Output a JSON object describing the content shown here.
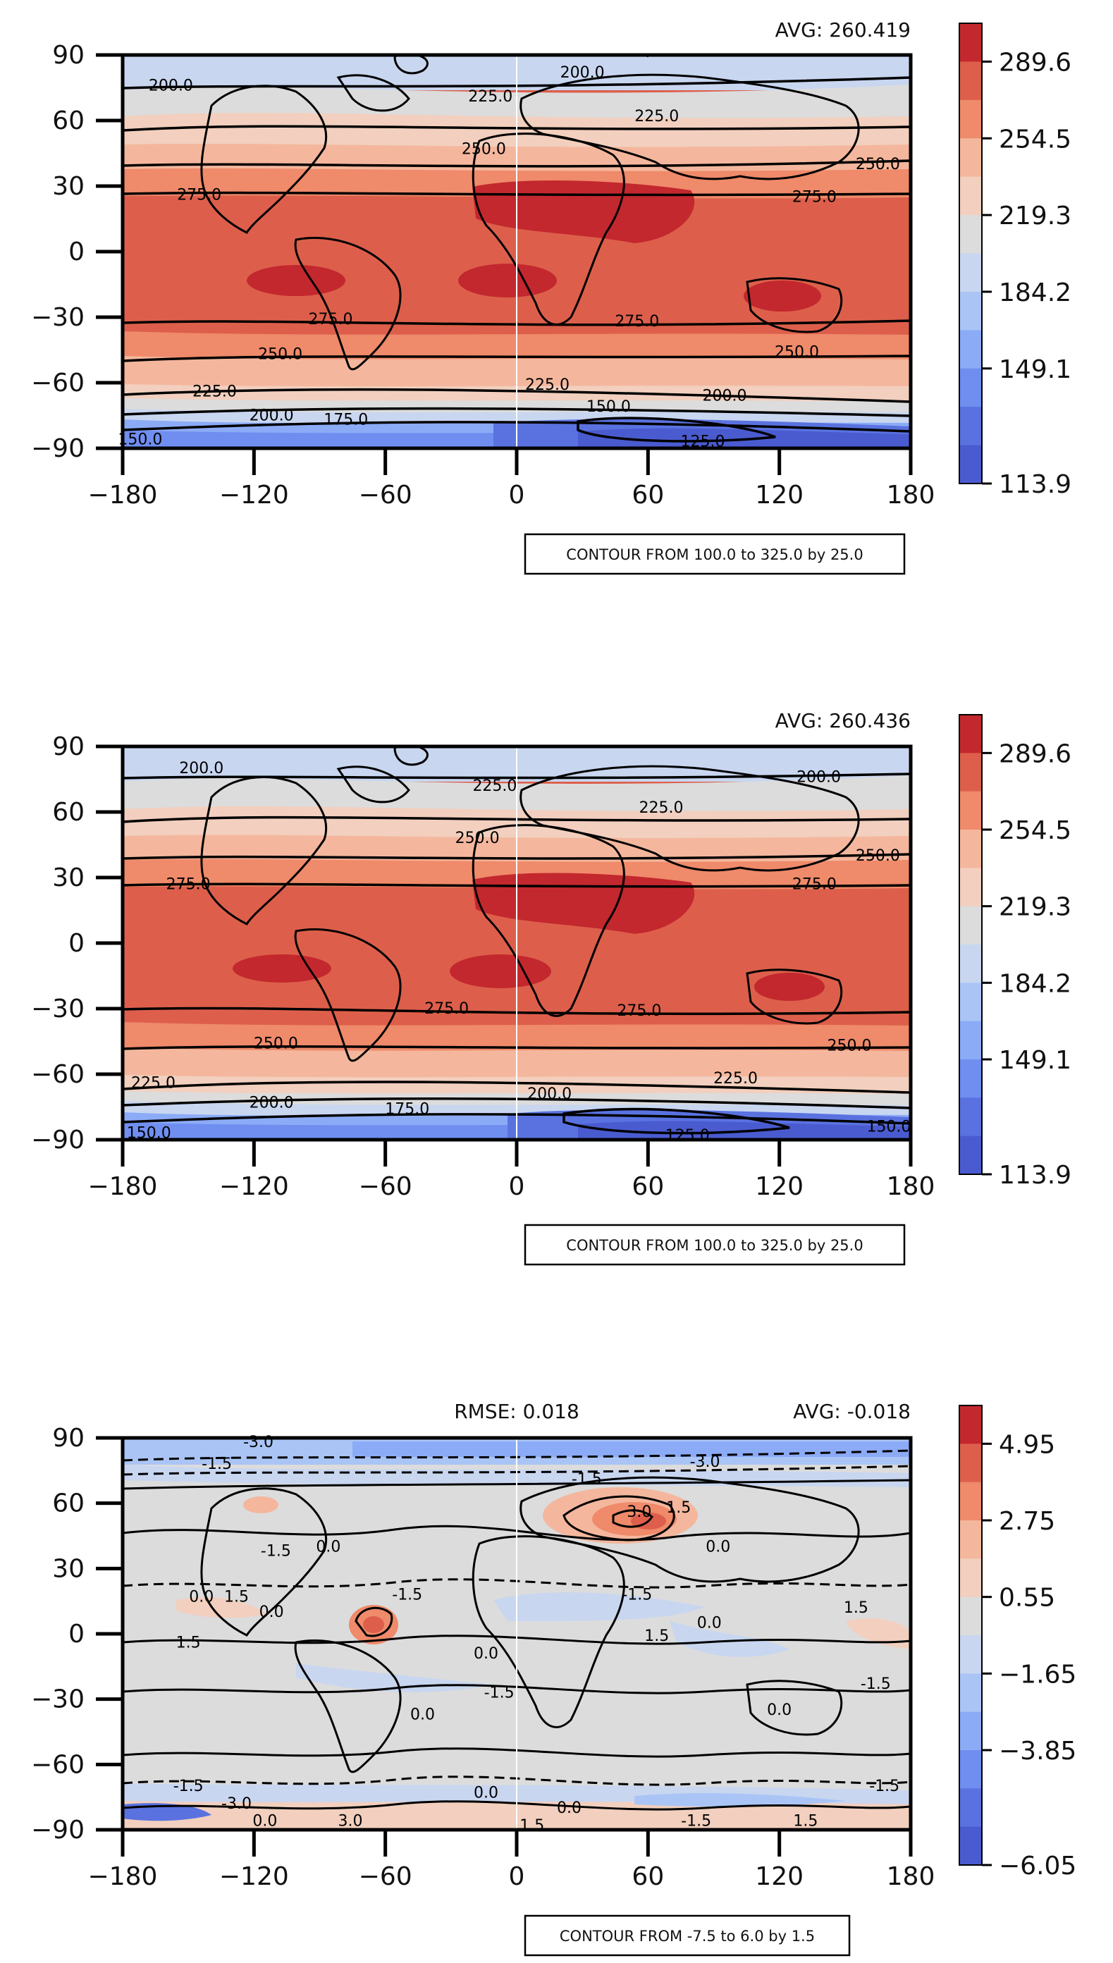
{
  "chart_data": [
    {
      "type": "contour-map",
      "avg_label": "AVG: 260.419",
      "rmse_label": "",
      "contour_note": "CONTOUR FROM 100.0 to 325.0 by 25.0",
      "xlim": [
        -180,
        180
      ],
      "ylim": [
        -90,
        90
      ],
      "xticks": [
        "−180",
        "−120",
        "−60",
        "0",
        "60",
        "120",
        "180"
      ],
      "yticks": [
        "90",
        "60",
        "30",
        "0",
        "−30",
        "−60",
        "−90"
      ],
      "colorbar": {
        "ticks": [
          "289.6",
          "254.5",
          "219.3",
          "184.2",
          "149.1",
          "113.9"
        ],
        "colors": [
          "#c3282e",
          "#dd5f4b",
          "#ef8a6a",
          "#f4b79d",
          "#f2cfbe",
          "#dcdcdc",
          "#c8d6f0",
          "#aac5f5",
          "#8cabf7",
          "#6f8ef0",
          "#5a72e0",
          "#4a5bd0"
        ]
      },
      "contour_labels": [
        {
          "text": "200.0",
          "x": -158,
          "y": 76
        },
        {
          "text": "200.0",
          "x": 30,
          "y": 82
        },
        {
          "text": "225.0",
          "x": -12,
          "y": 71
        },
        {
          "text": "225.0",
          "x": 64,
          "y": 62
        },
        {
          "text": "250.0",
          "x": -15,
          "y": 47
        },
        {
          "text": "250.0",
          "x": 165,
          "y": 40
        },
        {
          "text": "275.0",
          "x": -145,
          "y": 26
        },
        {
          "text": "275.0",
          "x": 136,
          "y": 25
        },
        {
          "text": "275.0",
          "x": -85,
          "y": -31
        },
        {
          "text": "275.0",
          "x": 55,
          "y": -32
        },
        {
          "text": "250.0",
          "x": -108,
          "y": -47
        },
        {
          "text": "250.0",
          "x": 128,
          "y": -46
        },
        {
          "text": "225.0",
          "x": -138,
          "y": -64
        },
        {
          "text": "225.0",
          "x": 14,
          "y": -61
        },
        {
          "text": "200.0",
          "x": -112,
          "y": -75
        },
        {
          "text": "200.0",
          "x": 95,
          "y": -66
        },
        {
          "text": "175.0",
          "x": -78,
          "y": -77
        },
        {
          "text": "150.0",
          "x": 42,
          "y": -71
        },
        {
          "text": "125.0",
          "x": 85,
          "y": -87
        },
        {
          "text": "150.0",
          "x": -172,
          "y": -86
        }
      ]
    },
    {
      "type": "contour-map",
      "avg_label": "AVG: 260.436",
      "rmse_label": "",
      "contour_note": "CONTOUR FROM 100.0 to 325.0 by 25.0",
      "xlim": [
        -180,
        180
      ],
      "ylim": [
        -90,
        90
      ],
      "xticks": [
        "−180",
        "−120",
        "−60",
        "0",
        "60",
        "120",
        "180"
      ],
      "yticks": [
        "90",
        "60",
        "30",
        "0",
        "−30",
        "−60",
        "−90"
      ],
      "colorbar": {
        "ticks": [
          "289.6",
          "254.5",
          "219.3",
          "184.2",
          "149.1",
          "113.9"
        ],
        "colors": [
          "#c3282e",
          "#dd5f4b",
          "#ef8a6a",
          "#f4b79d",
          "#f2cfbe",
          "#dcdcdc",
          "#c8d6f0",
          "#aac5f5",
          "#8cabf7",
          "#6f8ef0",
          "#5a72e0",
          "#4a5bd0"
        ]
      },
      "contour_labels": [
        {
          "text": "200.0",
          "x": -144,
          "y": 80
        },
        {
          "text": "200.0",
          "x": 138,
          "y": 76
        },
        {
          "text": "225.0",
          "x": -10,
          "y": 72
        },
        {
          "text": "225.0",
          "x": 66,
          "y": 62
        },
        {
          "text": "250.0",
          "x": -18,
          "y": 48
        },
        {
          "text": "250.0",
          "x": 165,
          "y": 40
        },
        {
          "text": "275.0",
          "x": -150,
          "y": 27
        },
        {
          "text": "275.0",
          "x": 136,
          "y": 27
        },
        {
          "text": "275.0",
          "x": -32,
          "y": -30
        },
        {
          "text": "275.0",
          "x": 56,
          "y": -31
        },
        {
          "text": "250.0",
          "x": -110,
          "y": -46
        },
        {
          "text": "250.0",
          "x": 152,
          "y": -47
        },
        {
          "text": "225.0",
          "x": -166,
          "y": -64
        },
        {
          "text": "225.0",
          "x": 100,
          "y": -62
        },
        {
          "text": "200.0",
          "x": -112,
          "y": -73
        },
        {
          "text": "200.0",
          "x": 15,
          "y": -69
        },
        {
          "text": "175.0",
          "x": -50,
          "y": -76
        },
        {
          "text": "125.0",
          "x": 78,
          "y": -88
        },
        {
          "text": "150.0",
          "x": -168,
          "y": -87
        },
        {
          "text": "150.0",
          "x": 170,
          "y": -84
        }
      ]
    },
    {
      "type": "contour-map",
      "avg_label": "AVG: -0.018",
      "rmse_label": "RMSE: 0.018",
      "contour_note": "CONTOUR FROM -7.5 to 6.0 by 1.5",
      "xlim": [
        -180,
        180
      ],
      "ylim": [
        -90,
        90
      ],
      "xticks": [
        "−180",
        "−120",
        "−60",
        "0",
        "60",
        "120",
        "180"
      ],
      "yticks": [
        "90",
        "60",
        "30",
        "0",
        "−30",
        "−60",
        "−90"
      ],
      "colorbar": {
        "ticks": [
          "4.95",
          "2.75",
          "0.55",
          "−1.65",
          "−3.85",
          "−6.05"
        ],
        "colors": [
          "#c3282e",
          "#dd5f4b",
          "#ef8a6a",
          "#f4b79d",
          "#f2cfbe",
          "#dcdcdc",
          "#c8d6f0",
          "#aac5f5",
          "#8cabf7",
          "#6f8ef0",
          "#5a72e0",
          "#4a5bd0"
        ]
      },
      "contour_labels": [
        {
          "text": "-3.0",
          "x": -118,
          "y": 88
        },
        {
          "text": "-1.5",
          "x": -137,
          "y": 78
        },
        {
          "text": "-3.0",
          "x": 86,
          "y": 79
        },
        {
          "text": "-1.5",
          "x": 32,
          "y": 71
        },
        {
          "text": "3.0",
          "x": 56,
          "y": 56
        },
        {
          "text": "1.5",
          "x": 74,
          "y": 58
        },
        {
          "text": "0.0",
          "x": -86,
          "y": 40
        },
        {
          "text": "-1.5",
          "x": -110,
          "y": 38
        },
        {
          "text": "0.0",
          "x": 92,
          "y": 40
        },
        {
          "text": "0.0",
          "x": -144,
          "y": 17
        },
        {
          "text": "1.5",
          "x": -128,
          "y": 17
        },
        {
          "text": "0.0",
          "x": -112,
          "y": 10
        },
        {
          "text": "-1.5",
          "x": -50,
          "y": 18
        },
        {
          "text": "-1.5",
          "x": 55,
          "y": 18
        },
        {
          "text": "1.5",
          "x": 64,
          "y": -1
        },
        {
          "text": "0.0",
          "x": 88,
          "y": 5
        },
        {
          "text": "1.5",
          "x": 155,
          "y": 12
        },
        {
          "text": "0.0",
          "x": -14,
          "y": -9
        },
        {
          "text": "-1.5",
          "x": -8,
          "y": -27
        },
        {
          "text": "1.5",
          "x": -150,
          "y": -4
        },
        {
          "text": "0.0",
          "x": 120,
          "y": -35
        },
        {
          "text": "0.0",
          "x": -43,
          "y": -37
        },
        {
          "text": "-1.5",
          "x": 164,
          "y": -23
        },
        {
          "text": "-1.5",
          "x": -150,
          "y": -70
        },
        {
          "text": "-3.0",
          "x": -128,
          "y": -78
        },
        {
          "text": "0.0",
          "x": -115,
          "y": -86
        },
        {
          "text": "0.0",
          "x": -14,
          "y": -73
        },
        {
          "text": "0.0",
          "x": 24,
          "y": -80
        },
        {
          "text": "-1.5",
          "x": 82,
          "y": -86
        },
        {
          "text": "1.5",
          "x": 132,
          "y": -86
        },
        {
          "text": "-1.5",
          "x": 168,
          "y": -70
        },
        {
          "text": "1.5",
          "x": 7,
          "y": -88
        },
        {
          "text": "3.0",
          "x": -76,
          "y": -86
        }
      ]
    }
  ]
}
